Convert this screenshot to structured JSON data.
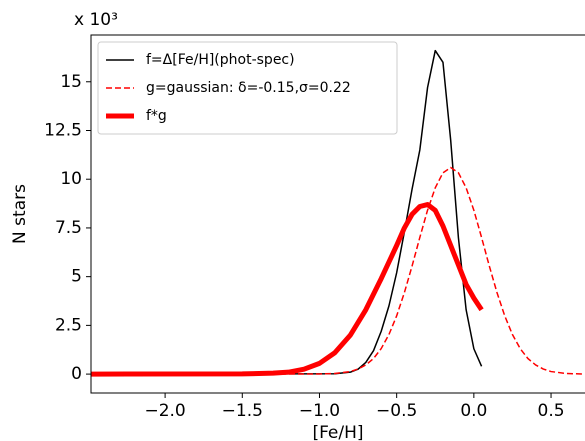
{
  "chart_data": {
    "type": "line",
    "xlabel": "[Fe/H]",
    "ylabel": "N stars",
    "y_offset_label": "x 10³",
    "xlim": [
      -2.48,
      0.72
    ],
    "ylim": [
      -0.97,
      17.4
    ],
    "xticks": [
      {
        "value": -2.0,
        "label": "−2.0"
      },
      {
        "value": -1.5,
        "label": "−1.5"
      },
      {
        "value": -1.0,
        "label": "−1.0"
      },
      {
        "value": -0.5,
        "label": "−0.5"
      },
      {
        "value": 0.0,
        "label": "0.0"
      },
      {
        "value": 0.5,
        "label": "0.5"
      }
    ],
    "yticks": [
      0,
      2.5,
      5,
      7.5,
      10,
      12.5,
      15
    ],
    "legend": "upper-left",
    "series": [
      {
        "name": "f=Δ[Fe/H](phot-spec)",
        "color": "#000000",
        "width": 1.5,
        "dash": "solid",
        "x": [
          -2.48,
          -0.9,
          -0.8,
          -0.75,
          -0.7,
          -0.65,
          -0.6,
          -0.55,
          -0.5,
          -0.45,
          -0.4,
          -0.35,
          -0.3,
          -0.25,
          -0.2,
          -0.15,
          -0.1,
          -0.05,
          0.0,
          0.05
        ],
        "values": [
          0,
          0.02,
          0.1,
          0.25,
          0.6,
          1.2,
          2.2,
          3.5,
          5.2,
          7.3,
          9.5,
          11.5,
          14.7,
          16.6,
          16.0,
          12.0,
          7.0,
          3.3,
          1.3,
          0.4
        ]
      },
      {
        "name": "g=gaussian: δ=-0.15,σ=0.22",
        "color": "#ff0000",
        "width": 1.5,
        "dash": "dashed",
        "x": [
          -2.48,
          -1.0,
          -0.9,
          -0.8,
          -0.75,
          -0.7,
          -0.65,
          -0.6,
          -0.55,
          -0.5,
          -0.45,
          -0.4,
          -0.35,
          -0.3,
          -0.25,
          -0.2,
          -0.15,
          -0.1,
          -0.05,
          0.0,
          0.05,
          0.1,
          0.15,
          0.2,
          0.25,
          0.3,
          0.35,
          0.4,
          0.45,
          0.5,
          0.6,
          0.7
        ],
        "values": [
          0,
          0.006,
          0.03,
          0.13,
          0.26,
          0.47,
          0.8,
          1.31,
          2.03,
          2.99,
          4.18,
          5.55,
          7.01,
          8.41,
          9.56,
          10.33,
          10.6,
          10.33,
          9.56,
          8.41,
          7.01,
          5.55,
          4.18,
          2.99,
          2.03,
          1.31,
          0.8,
          0.47,
          0.26,
          0.13,
          0.03,
          0.006
        ]
      },
      {
        "name": "f*g",
        "color": "#ff0000",
        "width": 5,
        "dash": "solid",
        "x": [
          -2.48,
          -1.5,
          -1.3,
          -1.2,
          -1.1,
          -1.0,
          -0.9,
          -0.8,
          -0.7,
          -0.6,
          -0.5,
          -0.45,
          -0.4,
          -0.35,
          -0.3,
          -0.25,
          -0.2,
          -0.15,
          -0.1,
          -0.05,
          0.0,
          0.05
        ],
        "values": [
          0,
          0.01,
          0.05,
          0.1,
          0.25,
          0.55,
          1.1,
          2.0,
          3.3,
          4.9,
          6.6,
          7.5,
          8.2,
          8.6,
          8.7,
          8.4,
          7.6,
          6.6,
          5.6,
          4.6,
          3.9,
          3.3
        ]
      }
    ]
  }
}
